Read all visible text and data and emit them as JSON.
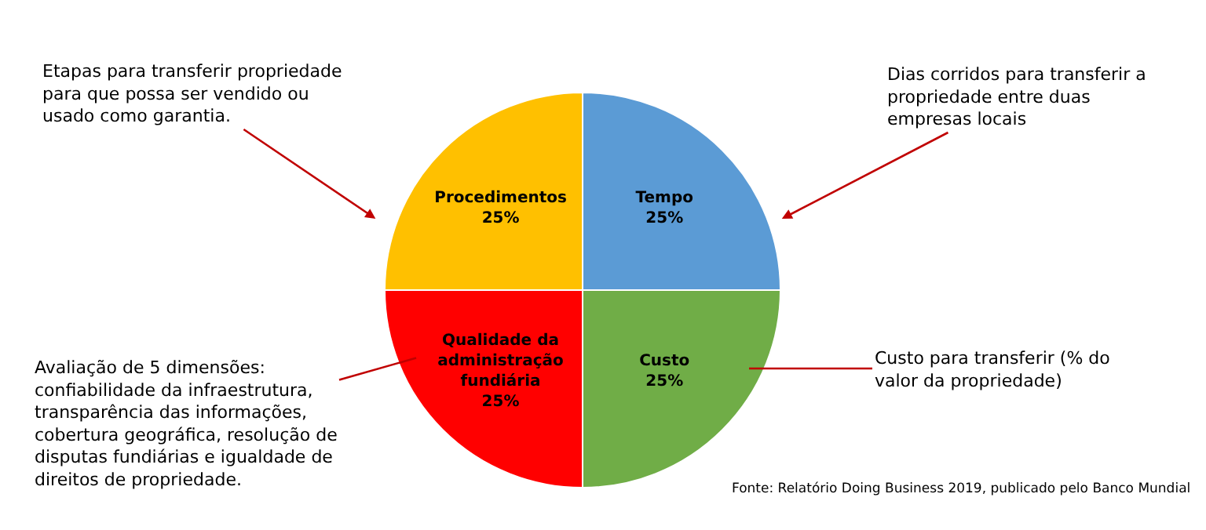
{
  "chart_data": {
    "type": "pie",
    "categories": [
      "Tempo",
      "Custo",
      "Qualidade da administração fundiária",
      "Procedimentos"
    ],
    "values": [
      25,
      25,
      25,
      25
    ],
    "colors": [
      "#5b9bd5",
      "#70ad47",
      "#ff0000",
      "#ffc000"
    ],
    "value_labels": [
      "25%",
      "25%",
      "25%",
      "25%"
    ],
    "annotations": [
      "Dias corridos para transferir a\npropriedade entre duas\nempresas locais",
      "Custo para transferir (% do\nvalor da propriedade)",
      "Avaliação de 5 dimensões:\nconfiabilidade da infraestrutura,\ntransparência das informações,\ncobertura geográfica, resolução de\ndisputas fundiárias e igualdade de\ndireitos de propriedade.",
      "Etapas para transferir propriedade\npara que possa ser vendido ou\nusado como garantia.",
      "Fonte: Relatório Doing Business 2019, publicado pelo Banco Mundial"
    ]
  }
}
